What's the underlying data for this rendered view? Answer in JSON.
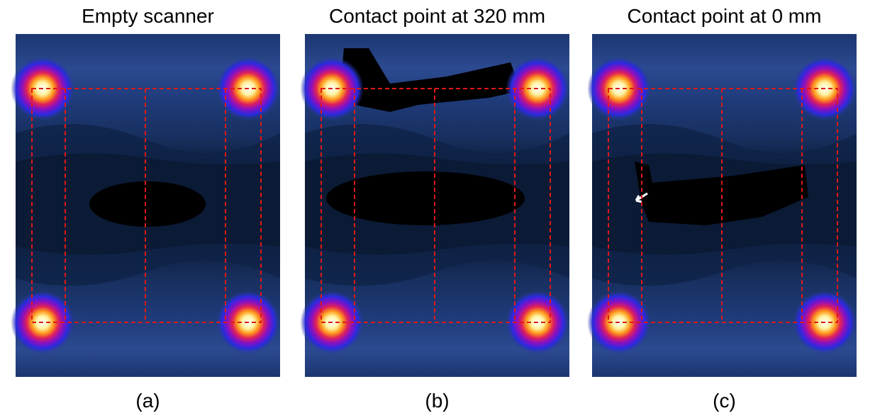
{
  "panels": [
    {
      "title": "Empty scanner",
      "caption": "(a)"
    },
    {
      "title": "Contact point at 320 mm",
      "caption": "(b)"
    },
    {
      "title": "Contact point at 0 mm",
      "caption": "(c)"
    }
  ]
}
